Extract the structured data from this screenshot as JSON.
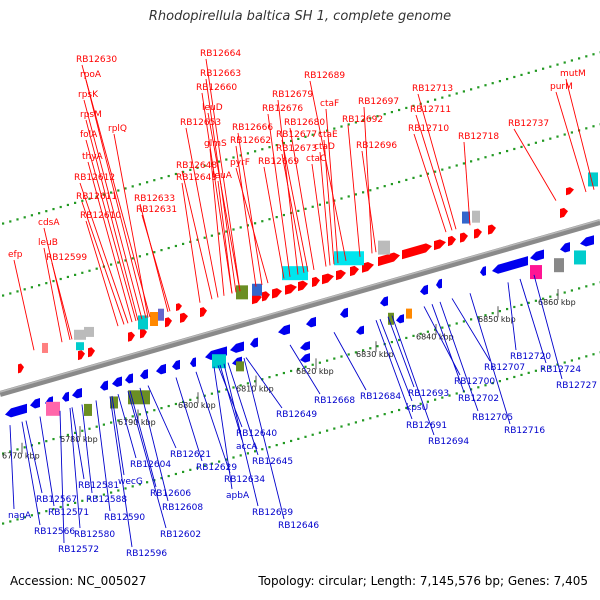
{
  "title": "Rhodopirellula baltica SH 1, complete genome",
  "footer": {
    "accession": "Accession: NC_005027",
    "summary": "Topology: circular; Length: 7,145,576 bp; Genes: 7,405"
  },
  "colors": {
    "top_labels": "#ff0000",
    "bottom_labels": "#0000cc",
    "forward_genes": "#ff0000",
    "reverse_genes": "#0000ee",
    "backbone": "#888888",
    "dots": "#229922"
  },
  "kbp_ticks": [
    "6770 kbp",
    "6780 kbp",
    "6790 kbp",
    "6800 kbp",
    "6810 kbp",
    "6820 kbp",
    "6830 kbp",
    "6840 kbp",
    "6850 kbp",
    "6860 kbp"
  ],
  "top_labels": [
    "efp",
    "leuB",
    "RB12599",
    "cdsA",
    "RB12610",
    "RB12611",
    "RB12612",
    "thyA",
    "folA",
    "rpsM",
    "rpsK",
    "rpoA",
    "RB12630",
    "rplQ",
    "RB12631",
    "RB12633",
    "RB12643",
    "RB12648",
    "leuA",
    "glmS",
    "RB12653",
    "leuD",
    "RB12660",
    "RB12663",
    "RB12664",
    "RB12662",
    "RB12666",
    "pyrF",
    "RB12669",
    "RB12676",
    "RB12679",
    "RB12673",
    "RB12677",
    "RB12680",
    "ctaC",
    "ctaD",
    "ctaE",
    "ctaF",
    "RB12689",
    "RB12692",
    "RB12696",
    "RB12697",
    "RB12710",
    "RB12711",
    "RB12713",
    "RB12718",
    "RB12737",
    "purM",
    "mutM"
  ],
  "bottom_labels": [
    "nagA",
    "RB12566",
    "RB12567",
    "RB12571",
    "RB12572",
    "RB12580",
    "RB12581",
    "RB12588",
    "RB12590",
    "RB12596",
    "RB12602",
    "RB12604",
    "wecG",
    "RB12606",
    "RB12608",
    "RB12621",
    "RB12629",
    "RB12634",
    "RB12639",
    "apbA",
    "RB12646",
    "RB12645",
    "accA",
    "RB12640",
    "RB12649",
    "RB12668",
    "RB12684",
    "kpsU",
    "RB12691",
    "RB12693",
    "RB12694",
    "RB12700",
    "RB12702",
    "RB12705",
    "RB12707",
    "RB12716",
    "RB12720",
    "RB12724",
    "RB12727"
  ]
}
